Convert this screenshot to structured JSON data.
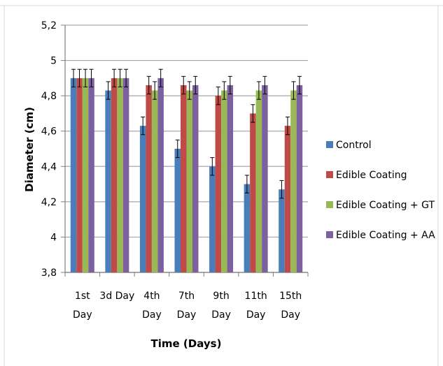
{
  "chart_data": {
    "type": "bar",
    "title": "",
    "xlabel": "Time (Days)",
    "ylabel": "Diameter (cm)",
    "ylim": [
      3.8,
      5.2
    ],
    "yticks": [
      "3,8",
      "4",
      "4,2",
      "4,4",
      "4,6",
      "4,8",
      "5",
      "5,2"
    ],
    "ytick_values": [
      3.8,
      4.0,
      4.2,
      4.4,
      4.6,
      4.8,
      5.0,
      5.2
    ],
    "grid": "horizontal",
    "legend_position": "right",
    "categories": [
      [
        "1st",
        "Day"
      ],
      [
        "3d Day"
      ],
      [
        "4th",
        "Day"
      ],
      [
        "7th",
        "Day"
      ],
      [
        "9th",
        "Day"
      ],
      [
        "11th",
        "Day"
      ],
      [
        "15th",
        "Day"
      ]
    ],
    "series": [
      {
        "name": "Control",
        "color": "#4a7ebb",
        "values": [
          4.9,
          4.83,
          4.63,
          4.5,
          4.4,
          4.3,
          4.27
        ],
        "errors": [
          0.05,
          0.05,
          0.05,
          0.05,
          0.05,
          0.05,
          0.05
        ]
      },
      {
        "name": "Edible Coating",
        "color": "#be4b48",
        "values": [
          4.9,
          4.9,
          4.86,
          4.86,
          4.8,
          4.7,
          4.63
        ],
        "errors": [
          0.05,
          0.05,
          0.05,
          0.05,
          0.05,
          0.05,
          0.05
        ]
      },
      {
        "name": "Edible Coating + GT",
        "color": "#98b954",
        "values": [
          4.9,
          4.9,
          4.83,
          4.83,
          4.83,
          4.83,
          4.83
        ],
        "errors": [
          0.05,
          0.05,
          0.05,
          0.05,
          0.05,
          0.05,
          0.05
        ]
      },
      {
        "name": "Edible Coating + AA",
        "color": "#7d60a0",
        "values": [
          4.9,
          4.9,
          4.9,
          4.86,
          4.86,
          4.86,
          4.86
        ],
        "errors": [
          0.05,
          0.05,
          0.05,
          0.05,
          0.05,
          0.05,
          0.05
        ]
      }
    ]
  }
}
